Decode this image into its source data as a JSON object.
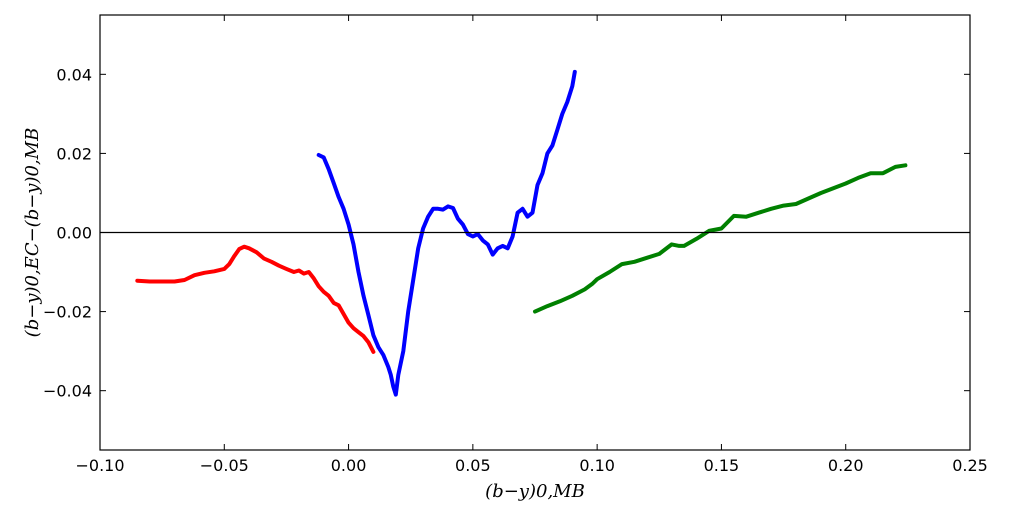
{
  "chart_data": {
    "type": "line",
    "xlabel": "(b−y)0,MB",
    "ylabel": "(b−y)0,EC−(b−y)0,MB",
    "xlim": [
      -0.1,
      0.25
    ],
    "ylim": [
      -0.055,
      0.055
    ],
    "x_ticks": [
      "−0.10",
      "−0.05",
      "0.00",
      "0.05",
      "0.10",
      "0.15",
      "0.20",
      "0.25"
    ],
    "y_ticks": [
      "−0.04",
      "−0.02",
      "0.00",
      "0.02",
      "0.04"
    ],
    "x_tick_values": [
      -0.1,
      -0.05,
      0.0,
      0.05,
      0.1,
      0.15,
      0.2,
      0.25
    ],
    "y_tick_values": [
      -0.04,
      -0.02,
      0.0,
      0.02,
      0.04
    ],
    "hline": 0.0,
    "grid": false,
    "series": [
      {
        "color": "#ff0000",
        "x": [
          -0.085,
          -0.08,
          -0.075,
          -0.07,
          -0.066,
          -0.062,
          -0.058,
          -0.054,
          -0.05,
          -0.048,
          -0.046,
          -0.044,
          -0.042,
          -0.04,
          -0.037,
          -0.034,
          -0.031,
          -0.028,
          -0.025,
          -0.022,
          -0.02,
          -0.018,
          -0.016,
          -0.014,
          -0.012,
          -0.01,
          -0.008,
          -0.006,
          -0.004,
          -0.002,
          0.0,
          0.002,
          0.004,
          0.006,
          0.008,
          0.01
        ],
        "y": [
          -0.0122,
          -0.0124,
          -0.0124,
          -0.0124,
          -0.012,
          -0.0108,
          -0.0102,
          -0.0098,
          -0.0092,
          -0.008,
          -0.006,
          -0.0042,
          -0.0036,
          -0.004,
          -0.005,
          -0.0066,
          -0.0074,
          -0.0084,
          -0.0092,
          -0.01,
          -0.0096,
          -0.0104,
          -0.01,
          -0.0116,
          -0.0136,
          -0.015,
          -0.016,
          -0.0178,
          -0.0184,
          -0.0206,
          -0.0228,
          -0.0242,
          -0.0252,
          -0.0262,
          -0.0278,
          -0.0302
        ]
      },
      {
        "color": "#0000ff",
        "x": [
          -0.012,
          -0.01,
          -0.008,
          -0.006,
          -0.004,
          -0.002,
          0.0,
          0.002,
          0.004,
          0.006,
          0.008,
          0.01,
          0.012,
          0.014,
          0.016,
          0.017,
          0.018,
          0.019,
          0.02,
          0.021,
          0.022,
          0.024,
          0.026,
          0.028,
          0.03,
          0.032,
          0.034,
          0.036,
          0.038,
          0.04,
          0.042,
          0.044,
          0.046,
          0.048,
          0.05,
          0.052,
          0.054,
          0.056,
          0.058,
          0.06,
          0.062,
          0.064,
          0.066,
          0.068,
          0.07,
          0.072,
          0.074,
          0.076,
          0.078,
          0.08,
          0.082,
          0.084,
          0.086,
          0.088,
          0.09,
          0.091
        ],
        "y": [
          0.0196,
          0.019,
          0.016,
          0.0125,
          0.009,
          0.006,
          0.002,
          -0.003,
          -0.01,
          -0.016,
          -0.021,
          -0.026,
          -0.029,
          -0.031,
          -0.034,
          -0.036,
          -0.039,
          -0.041,
          -0.036,
          -0.033,
          -0.03,
          -0.02,
          -0.012,
          -0.004,
          0.001,
          0.004,
          0.006,
          0.006,
          0.0058,
          0.0066,
          0.0062,
          0.0035,
          0.002,
          -0.0004,
          -0.001,
          -0.0004,
          -0.002,
          -0.003,
          -0.0056,
          -0.004,
          -0.0034,
          -0.004,
          -0.001,
          0.005,
          0.006,
          0.004,
          0.005,
          0.012,
          0.015,
          0.02,
          0.022,
          0.026,
          0.03,
          0.033,
          0.037,
          0.0406
        ]
      },
      {
        "color": "#008000",
        "x": [
          0.075,
          0.08,
          0.085,
          0.09,
          0.095,
          0.098,
          0.1,
          0.105,
          0.11,
          0.115,
          0.12,
          0.125,
          0.13,
          0.133,
          0.135,
          0.14,
          0.145,
          0.15,
          0.155,
          0.16,
          0.165,
          0.17,
          0.175,
          0.18,
          0.185,
          0.19,
          0.195,
          0.2,
          0.205,
          0.21,
          0.215,
          0.22,
          0.224
        ],
        "y": [
          -0.02,
          -0.0186,
          -0.0174,
          -0.016,
          -0.0144,
          -0.013,
          -0.0118,
          -0.01,
          -0.008,
          -0.0074,
          -0.0064,
          -0.0054,
          -0.003,
          -0.0034,
          -0.0034,
          -0.0016,
          0.0004,
          0.001,
          0.0042,
          0.004,
          0.005,
          0.006,
          0.0068,
          0.0072,
          0.0086,
          0.01,
          0.0112,
          0.0124,
          0.0138,
          0.015,
          0.015,
          0.0166,
          0.017
        ]
      }
    ]
  }
}
